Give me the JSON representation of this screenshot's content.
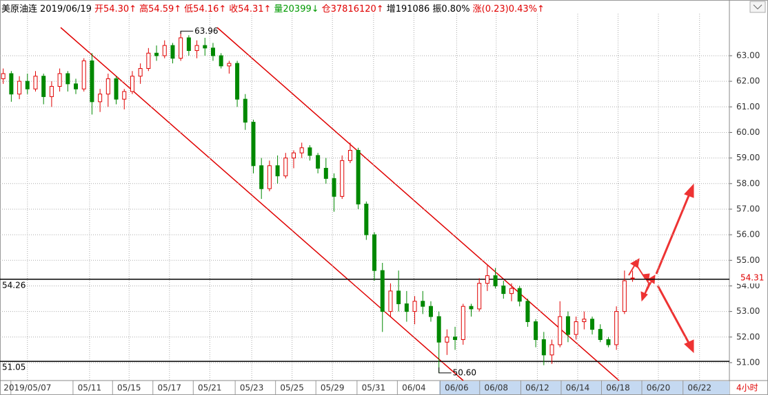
{
  "chart_data": {
    "type": "candlestick",
    "header": [
      {
        "text": "美原油连",
        "color": "#000"
      },
      {
        "text": "2019/06/19",
        "color": "#000"
      },
      {
        "text": "开54.30↑",
        "color": "#e00000"
      },
      {
        "text": "高54.59↑",
        "color": "#e00000"
      },
      {
        "text": "低54.16↑",
        "color": "#e00000"
      },
      {
        "text": "收54.31↑",
        "color": "#e00000"
      },
      {
        "text": "量20399↓",
        "color": "#009900"
      },
      {
        "text": "仓37816120↑",
        "color": "#e00000"
      },
      {
        "text": "增191086",
        "color": "#000"
      },
      {
        "text": "振0.80%",
        "color": "#000"
      },
      {
        "text": "涨(0.23)0.43%↑",
        "color": "#e00000"
      }
    ],
    "up_color": "#e00000",
    "down_color": "#008800",
    "candles": [
      [
        62.1,
        62.5,
        61.9,
        62.3
      ],
      [
        62.3,
        62.4,
        61.2,
        61.5
      ],
      [
        61.5,
        62.2,
        61.3,
        62.0
      ],
      [
        62.0,
        62.3,
        61.5,
        61.7
      ],
      [
        61.7,
        62.4,
        61.6,
        62.2
      ],
      [
        62.2,
        62.3,
        61.1,
        61.4
      ],
      [
        61.4,
        62.0,
        61.0,
        61.8
      ],
      [
        61.8,
        62.5,
        61.6,
        62.3
      ],
      [
        62.3,
        62.4,
        61.6,
        61.9
      ],
      [
        61.9,
        62.1,
        61.5,
        61.7
      ],
      [
        61.7,
        62.9,
        61.6,
        62.8
      ],
      [
        62.8,
        63.1,
        60.7,
        61.2
      ],
      [
        61.2,
        61.7,
        60.8,
        61.5
      ],
      [
        61.5,
        62.3,
        61.0,
        62.1
      ],
      [
        62.1,
        62.2,
        61.1,
        61.3
      ],
      [
        61.3,
        61.7,
        60.9,
        61.6
      ],
      [
        61.6,
        62.4,
        61.5,
        62.2
      ],
      [
        62.2,
        62.7,
        61.9,
        62.5
      ],
      [
        62.5,
        63.3,
        62.4,
        63.1
      ],
      [
        63.1,
        63.4,
        62.8,
        63.0
      ],
      [
        63.0,
        63.6,
        62.9,
        63.4
      ],
      [
        63.4,
        63.5,
        62.7,
        62.9
      ],
      [
        62.9,
        63.96,
        62.8,
        63.7
      ],
      [
        63.7,
        63.8,
        63.0,
        63.2
      ],
      [
        63.2,
        63.6,
        62.9,
        63.4
      ],
      [
        63.4,
        63.7,
        63.0,
        63.3
      ],
      [
        63.3,
        63.5,
        62.8,
        63.0
      ],
      [
        63.0,
        63.1,
        62.5,
        62.6
      ],
      [
        62.6,
        62.8,
        62.3,
        62.7
      ],
      [
        62.7,
        62.8,
        61.0,
        61.3
      ],
      [
        61.3,
        61.5,
        60.1,
        60.4
      ],
      [
        60.4,
        60.5,
        58.4,
        58.7
      ],
      [
        58.7,
        59.0,
        57.4,
        57.8
      ],
      [
        57.8,
        58.9,
        57.7,
        58.7
      ],
      [
        58.7,
        59.1,
        58.0,
        58.3
      ],
      [
        58.3,
        59.2,
        58.2,
        59.0
      ],
      [
        59.0,
        59.3,
        58.6,
        59.2
      ],
      [
        59.2,
        59.6,
        59.0,
        59.4
      ],
      [
        59.4,
        59.5,
        58.9,
        59.1
      ],
      [
        59.1,
        59.2,
        58.4,
        58.6
      ],
      [
        58.6,
        59.0,
        58.0,
        58.2
      ],
      [
        58.2,
        58.4,
        56.9,
        57.5
      ],
      [
        57.5,
        59.1,
        57.4,
        58.9
      ],
      [
        58.9,
        59.6,
        58.8,
        59.3
      ],
      [
        59.3,
        59.4,
        57.0,
        57.2
      ],
      [
        57.2,
        57.3,
        55.8,
        56.0
      ],
      [
        56.0,
        56.1,
        54.2,
        54.6
      ],
      [
        54.6,
        54.9,
        52.2,
        53.0
      ],
      [
        53.0,
        54.1,
        52.8,
        53.8
      ],
      [
        53.8,
        54.6,
        53.0,
        53.3
      ],
      [
        53.3,
        53.8,
        52.6,
        53.0
      ],
      [
        53.0,
        53.6,
        52.5,
        53.4
      ],
      [
        53.4,
        53.8,
        52.9,
        53.2
      ],
      [
        53.2,
        53.4,
        52.6,
        52.8
      ],
      [
        52.8,
        53.0,
        50.6,
        51.8
      ],
      [
        51.8,
        52.3,
        51.3,
        52.0
      ],
      [
        52.0,
        52.4,
        51.5,
        51.9
      ],
      [
        51.9,
        53.3,
        51.7,
        53.2
      ],
      [
        53.2,
        53.3,
        52.8,
        53.1
      ],
      [
        53.1,
        54.3,
        53.0,
        54.1
      ],
      [
        54.1,
        54.8,
        53.8,
        54.4
      ],
      [
        54.4,
        54.7,
        53.9,
        54.0
      ],
      [
        54.0,
        54.2,
        53.5,
        53.7
      ],
      [
        53.7,
        54.1,
        53.4,
        53.9
      ],
      [
        53.9,
        54.0,
        53.2,
        53.4
      ],
      [
        53.4,
        53.5,
        52.4,
        52.6
      ],
      [
        52.6,
        52.7,
        51.6,
        51.9
      ],
      [
        51.9,
        52.2,
        50.9,
        51.3
      ],
      [
        51.3,
        51.9,
        50.95,
        51.7
      ],
      [
        51.7,
        53.4,
        51.6,
        52.8
      ],
      [
        52.8,
        53.0,
        51.8,
        52.1
      ],
      [
        52.1,
        52.8,
        51.9,
        52.6
      ],
      [
        52.6,
        53.0,
        52.3,
        52.7
      ],
      [
        52.7,
        52.8,
        52.1,
        52.3
      ],
      [
        52.3,
        52.5,
        51.8,
        51.9
      ],
      [
        51.9,
        52.0,
        51.6,
        51.7
      ],
      [
        51.7,
        53.2,
        51.5,
        53.0
      ],
      [
        53.0,
        54.6,
        52.9,
        54.2
      ],
      [
        54.3,
        54.59,
        54.16,
        54.31
      ]
    ],
    "xlim": [
      -0.4,
      90
    ],
    "xticks": [
      {
        "value": 3,
        "label": "2019/05/07"
      },
      {
        "value": 10.7,
        "label": "05/11"
      },
      {
        "value": 15.6,
        "label": "05/15"
      },
      {
        "value": 20.6,
        "label": "05/17"
      },
      {
        "value": 25.6,
        "label": "05/21"
      },
      {
        "value": 30.8,
        "label": "05/23"
      },
      {
        "value": 35.8,
        "label": "05/25"
      },
      {
        "value": 40.8,
        "label": "05/29"
      },
      {
        "value": 45.9,
        "label": "05/31"
      },
      {
        "value": 50.9,
        "label": "06/04"
      },
      {
        "value": 56.2,
        "label": "06/06"
      },
      {
        "value": 61.1,
        "label": "06/08"
      },
      {
        "value": 66.2,
        "label": "06/12"
      },
      {
        "value": 71.2,
        "label": "06/14"
      },
      {
        "value": 76.2,
        "label": "06/18"
      },
      {
        "value": 81.2,
        "label": "06/20"
      },
      {
        "value": 86.3,
        "label": "06/22"
      }
    ],
    "ylim": [
      50.38,
      64.64
    ],
    "yticks": [
      {
        "value": 51,
        "label": "51.00"
      },
      {
        "value": 52,
        "label": "52.00"
      },
      {
        "value": 53,
        "label": "53.00"
      },
      {
        "value": 54,
        "label": "54.00"
      },
      {
        "value": 55,
        "label": "55.00"
      },
      {
        "value": 56,
        "label": "56.00"
      },
      {
        "value": 57,
        "label": "57.00"
      },
      {
        "value": 58,
        "label": "58.00"
      },
      {
        "value": 59,
        "label": "59.00"
      },
      {
        "value": 60,
        "label": "60.00"
      },
      {
        "value": 61,
        "label": "61.00"
      },
      {
        "value": 62,
        "label": "62.00"
      },
      {
        "value": 63,
        "label": "63.00"
      }
    ],
    "hlines": [
      {
        "value": 54.26,
        "label": "54.26"
      },
      {
        "value": 51.05,
        "label": "51.05"
      }
    ],
    "last_price": {
      "value": 54.31,
      "label": "54.31"
    },
    "extremes": [
      {
        "x": 22,
        "value": 63.96,
        "label": "63.96"
      },
      {
        "x": 54,
        "value": 50.6,
        "label": "50.60"
      }
    ],
    "period": "4小时"
  }
}
